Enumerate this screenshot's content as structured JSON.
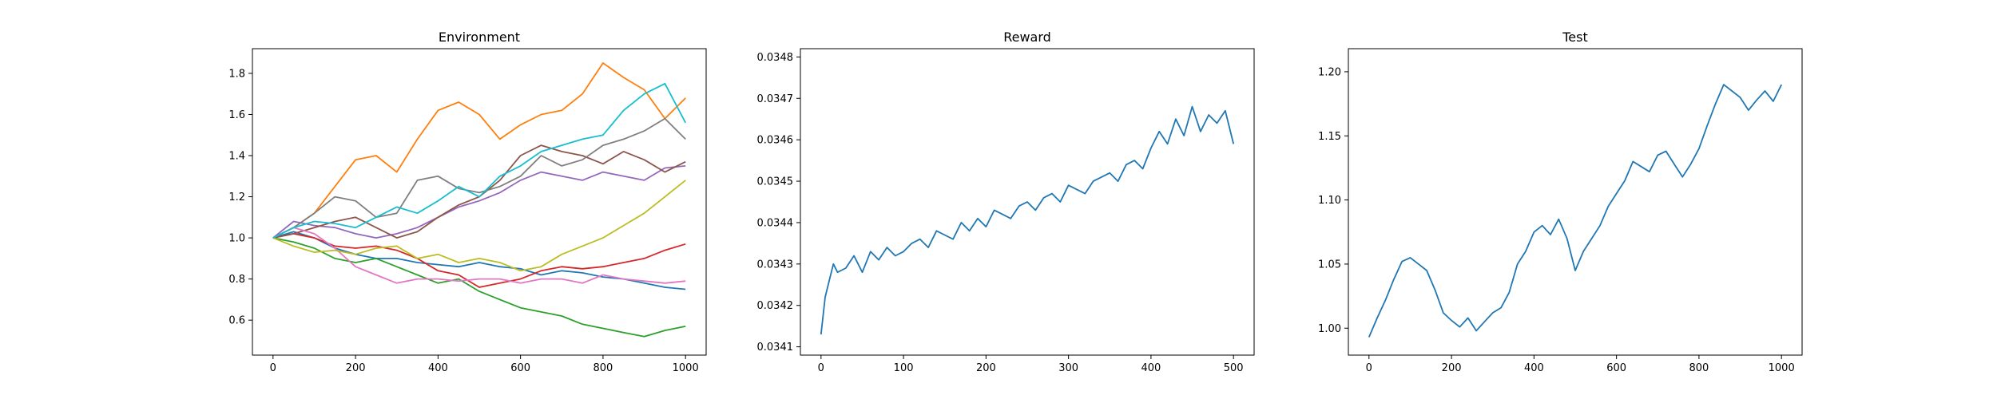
{
  "chart_data": [
    {
      "type": "line",
      "title": "Environment",
      "xlabel": "",
      "ylabel": "",
      "xlim": [
        -50,
        1050
      ],
      "ylim": [
        0.43,
        1.92
      ],
      "xticks": [
        0,
        200,
        400,
        600,
        800,
        1000
      ],
      "xtick_labels": [
        "0",
        "200",
        "400",
        "600",
        "800",
        "1000"
      ],
      "yticks": [
        0.6,
        0.8,
        1.0,
        1.2,
        1.4,
        1.6,
        1.8
      ],
      "ytick_labels": [
        "0.6",
        "0.8",
        "1.0",
        "1.2",
        "1.4",
        "1.6",
        "1.8"
      ],
      "grid": false,
      "series": [
        {
          "color": "#1f77b4",
          "x": [
            0,
            50,
            100,
            150,
            200,
            250,
            300,
            350,
            400,
            450,
            500,
            550,
            600,
            650,
            700,
            750,
            800,
            850,
            900,
            950,
            1000
          ],
          "y": [
            1.0,
            1.03,
            1.0,
            0.95,
            0.92,
            0.9,
            0.9,
            0.88,
            0.87,
            0.86,
            0.88,
            0.86,
            0.85,
            0.82,
            0.84,
            0.83,
            0.81,
            0.8,
            0.78,
            0.76,
            0.75
          ]
        },
        {
          "color": "#ff7f0e",
          "x": [
            0,
            50,
            100,
            150,
            200,
            250,
            300,
            350,
            400,
            450,
            500,
            550,
            600,
            650,
            700,
            750,
            800,
            850,
            900,
            950,
            1000
          ],
          "y": [
            1.0,
            1.05,
            1.12,
            1.25,
            1.38,
            1.4,
            1.32,
            1.48,
            1.62,
            1.66,
            1.6,
            1.48,
            1.55,
            1.6,
            1.62,
            1.7,
            1.85,
            1.78,
            1.72,
            1.58,
            1.68
          ]
        },
        {
          "color": "#2ca02c",
          "x": [
            0,
            50,
            100,
            150,
            200,
            250,
            300,
            350,
            400,
            450,
            500,
            550,
            600,
            650,
            700,
            750,
            800,
            850,
            900,
            950,
            1000
          ],
          "y": [
            1.0,
            0.98,
            0.95,
            0.9,
            0.88,
            0.9,
            0.86,
            0.82,
            0.78,
            0.8,
            0.74,
            0.7,
            0.66,
            0.64,
            0.62,
            0.58,
            0.56,
            0.54,
            0.52,
            0.55,
            0.57
          ]
        },
        {
          "color": "#d62728",
          "x": [
            0,
            50,
            100,
            150,
            200,
            250,
            300,
            350,
            400,
            450,
            500,
            550,
            600,
            650,
            700,
            750,
            800,
            850,
            900,
            950,
            1000
          ],
          "y": [
            1.0,
            1.02,
            1.0,
            0.96,
            0.95,
            0.96,
            0.94,
            0.9,
            0.84,
            0.82,
            0.76,
            0.78,
            0.8,
            0.84,
            0.86,
            0.85,
            0.86,
            0.88,
            0.9,
            0.94,
            0.97
          ]
        },
        {
          "color": "#9467bd",
          "x": [
            0,
            50,
            100,
            150,
            200,
            250,
            300,
            350,
            400,
            450,
            500,
            550,
            600,
            650,
            700,
            750,
            800,
            850,
            900,
            950,
            1000
          ],
          "y": [
            1.0,
            1.08,
            1.06,
            1.05,
            1.02,
            1.0,
            1.02,
            1.05,
            1.1,
            1.15,
            1.18,
            1.22,
            1.28,
            1.32,
            1.3,
            1.28,
            1.32,
            1.3,
            1.28,
            1.34,
            1.35
          ]
        },
        {
          "color": "#8c564b",
          "x": [
            0,
            50,
            100,
            150,
            200,
            250,
            300,
            350,
            400,
            450,
            500,
            550,
            600,
            650,
            700,
            750,
            800,
            850,
            900,
            950,
            1000
          ],
          "y": [
            1.0,
            1.02,
            1.05,
            1.08,
            1.1,
            1.05,
            1.0,
            1.03,
            1.1,
            1.16,
            1.2,
            1.28,
            1.4,
            1.45,
            1.42,
            1.4,
            1.36,
            1.42,
            1.38,
            1.32,
            1.37
          ]
        },
        {
          "color": "#e377c2",
          "x": [
            0,
            50,
            100,
            150,
            200,
            250,
            300,
            350,
            400,
            450,
            500,
            550,
            600,
            650,
            700,
            750,
            800,
            850,
            900,
            950,
            1000
          ],
          "y": [
            1.0,
            1.05,
            1.02,
            0.95,
            0.86,
            0.82,
            0.78,
            0.8,
            0.8,
            0.79,
            0.8,
            0.8,
            0.78,
            0.8,
            0.8,
            0.78,
            0.82,
            0.8,
            0.79,
            0.78,
            0.79
          ]
        },
        {
          "color": "#7f7f7f",
          "x": [
            0,
            50,
            100,
            150,
            200,
            250,
            300,
            350,
            400,
            450,
            500,
            550,
            600,
            650,
            700,
            750,
            800,
            850,
            900,
            950,
            1000
          ],
          "y": [
            1.0,
            1.05,
            1.12,
            1.2,
            1.18,
            1.1,
            1.12,
            1.28,
            1.3,
            1.24,
            1.22,
            1.25,
            1.3,
            1.4,
            1.35,
            1.38,
            1.45,
            1.48,
            1.52,
            1.58,
            1.48
          ]
        },
        {
          "color": "#bcbd22",
          "x": [
            0,
            50,
            100,
            150,
            200,
            250,
            300,
            350,
            400,
            450,
            500,
            550,
            600,
            650,
            700,
            750,
            800,
            850,
            900,
            950,
            1000
          ],
          "y": [
            1.0,
            0.96,
            0.93,
            0.94,
            0.92,
            0.95,
            0.96,
            0.9,
            0.92,
            0.88,
            0.9,
            0.88,
            0.84,
            0.86,
            0.92,
            0.96,
            1.0,
            1.06,
            1.12,
            1.2,
            1.28
          ]
        },
        {
          "color": "#17becf",
          "x": [
            0,
            50,
            100,
            150,
            200,
            250,
            300,
            350,
            400,
            450,
            500,
            550,
            600,
            650,
            700,
            750,
            800,
            850,
            900,
            950,
            1000
          ],
          "y": [
            1.0,
            1.05,
            1.08,
            1.07,
            1.05,
            1.1,
            1.15,
            1.12,
            1.18,
            1.25,
            1.2,
            1.3,
            1.35,
            1.42,
            1.45,
            1.48,
            1.5,
            1.62,
            1.7,
            1.75,
            1.56
          ]
        }
      ]
    },
    {
      "type": "line",
      "title": "Reward",
      "xlabel": "",
      "ylabel": "",
      "xlim": [
        -25,
        525
      ],
      "ylim": [
        0.03408,
        0.03482
      ],
      "xticks": [
        0,
        100,
        200,
        300,
        400,
        500
      ],
      "xtick_labels": [
        "0",
        "100",
        "200",
        "300",
        "400",
        "500"
      ],
      "yticks": [
        0.0341,
        0.0342,
        0.0343,
        0.0344,
        0.0345,
        0.0346,
        0.0347,
        0.0348
      ],
      "ytick_labels": [
        "0.0341",
        "0.0342",
        "0.0343",
        "0.0344",
        "0.0345",
        "0.0346",
        "0.0347",
        "0.0348"
      ],
      "grid": false,
      "series": [
        {
          "color": "#1f77b4",
          "x": [
            0,
            5,
            10,
            15,
            20,
            30,
            40,
            50,
            60,
            70,
            80,
            90,
            100,
            110,
            120,
            130,
            140,
            150,
            160,
            170,
            180,
            190,
            200,
            210,
            220,
            230,
            240,
            250,
            260,
            270,
            280,
            290,
            300,
            310,
            320,
            330,
            340,
            350,
            360,
            370,
            380,
            390,
            400,
            410,
            420,
            430,
            440,
            450,
            460,
            470,
            480,
            490,
            500
          ],
          "y": [
            0.03413,
            0.03422,
            0.03426,
            0.0343,
            0.03428,
            0.03429,
            0.03432,
            0.03428,
            0.03433,
            0.03431,
            0.03434,
            0.03432,
            0.03433,
            0.03435,
            0.03436,
            0.03434,
            0.03438,
            0.03437,
            0.03436,
            0.0344,
            0.03438,
            0.03441,
            0.03439,
            0.03443,
            0.03442,
            0.03441,
            0.03444,
            0.03445,
            0.03443,
            0.03446,
            0.03447,
            0.03445,
            0.03449,
            0.03448,
            0.03447,
            0.0345,
            0.03451,
            0.03452,
            0.0345,
            0.03454,
            0.03455,
            0.03453,
            0.03458,
            0.03462,
            0.03459,
            0.03465,
            0.03461,
            0.03468,
            0.03462,
            0.03466,
            0.03464,
            0.03467,
            0.03459
          ]
        }
      ]
    },
    {
      "type": "line",
      "title": "Test",
      "xlabel": "",
      "ylabel": "",
      "xlim": [
        -50,
        1050
      ],
      "ylim": [
        0.979,
        1.218
      ],
      "xticks": [
        0,
        200,
        400,
        600,
        800,
        1000
      ],
      "xtick_labels": [
        "0",
        "200",
        "400",
        "600",
        "800",
        "1000"
      ],
      "yticks": [
        1.0,
        1.05,
        1.1,
        1.15,
        1.2
      ],
      "ytick_labels": [
        "1.00",
        "1.05",
        "1.10",
        "1.15",
        "1.20"
      ],
      "grid": false,
      "series": [
        {
          "color": "#1f77b4",
          "x": [
            0,
            20,
            40,
            60,
            80,
            100,
            120,
            140,
            160,
            180,
            200,
            220,
            240,
            260,
            280,
            300,
            320,
            340,
            360,
            380,
            400,
            420,
            440,
            460,
            480,
            500,
            520,
            540,
            560,
            580,
            600,
            620,
            640,
            660,
            680,
            700,
            720,
            740,
            760,
            780,
            800,
            820,
            840,
            860,
            880,
            900,
            920,
            940,
            960,
            980,
            1000
          ],
          "y": [
            0.993,
            1.008,
            1.022,
            1.038,
            1.052,
            1.055,
            1.05,
            1.045,
            1.03,
            1.012,
            1.006,
            1.001,
            1.008,
            0.998,
            1.005,
            1.012,
            1.016,
            1.028,
            1.05,
            1.06,
            1.075,
            1.08,
            1.073,
            1.085,
            1.07,
            1.045,
            1.06,
            1.07,
            1.08,
            1.095,
            1.105,
            1.115,
            1.13,
            1.126,
            1.122,
            1.135,
            1.138,
            1.128,
            1.118,
            1.128,
            1.14,
            1.158,
            1.175,
            1.19,
            1.185,
            1.18,
            1.17,
            1.178,
            1.185,
            1.177,
            1.19
          ]
        }
      ]
    }
  ]
}
